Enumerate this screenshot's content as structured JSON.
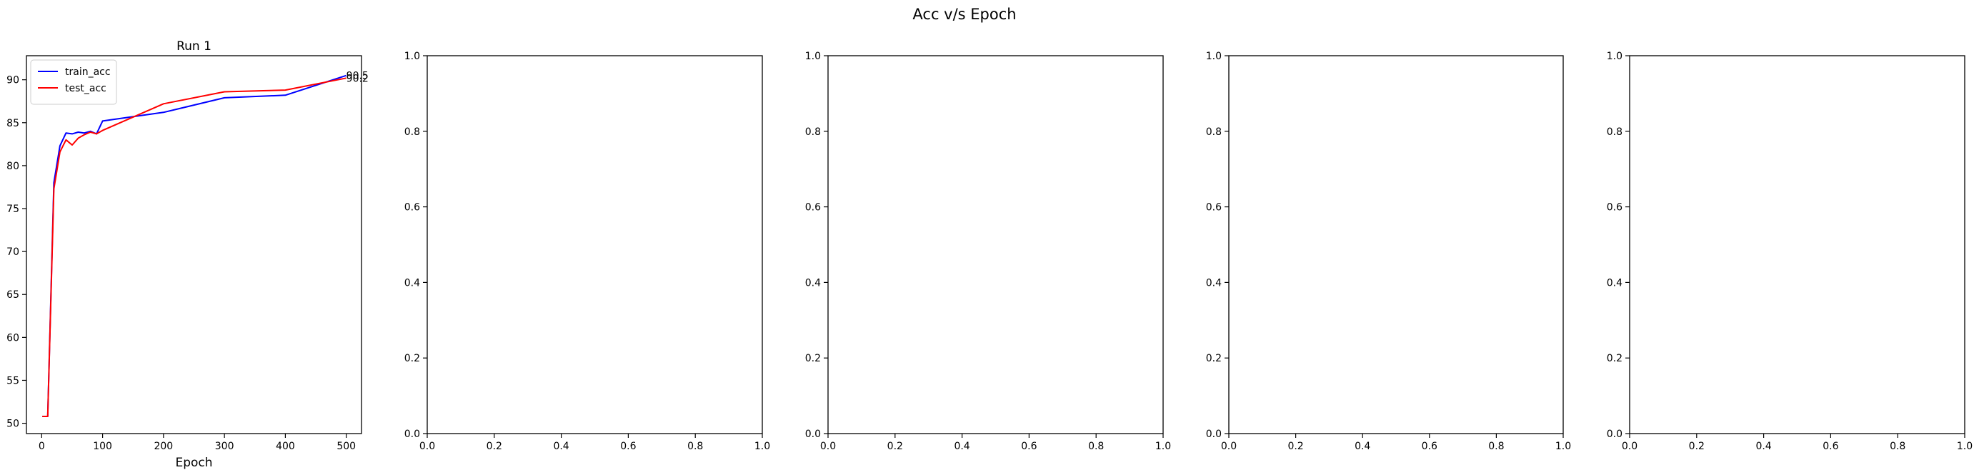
{
  "figure": {
    "suptitle": "Acc v/s Epoch"
  },
  "chart_data": [
    {
      "type": "line",
      "title": "Run 1",
      "xlabel": "Epoch",
      "ylabel": "",
      "xlim": [
        -25,
        525
      ],
      "ylim": [
        48.8,
        92.8
      ],
      "xticks": [
        0,
        100,
        200,
        300,
        400,
        500
      ],
      "yticks": [
        50,
        55,
        60,
        65,
        70,
        75,
        80,
        85,
        90
      ],
      "legend": "upper-left",
      "grid": false,
      "series": [
        {
          "name": "train_acc",
          "color": "#0000ff",
          "x": [
            1,
            10,
            20,
            30,
            40,
            50,
            60,
            70,
            80,
            90,
            100,
            200,
            300,
            400,
            500
          ],
          "y": [
            50.8,
            50.8,
            78.0,
            82.3,
            83.8,
            83.7,
            83.9,
            83.8,
            84.0,
            83.7,
            85.2,
            86.2,
            87.9,
            88.2,
            90.5
          ]
        },
        {
          "name": "test_acc",
          "color": "#ff0000",
          "x": [
            1,
            10,
            20,
            30,
            40,
            50,
            60,
            70,
            80,
            90,
            100,
            200,
            300,
            400,
            500
          ],
          "y": [
            50.8,
            50.8,
            77.3,
            81.6,
            83.0,
            82.4,
            83.2,
            83.6,
            83.9,
            83.7,
            84.1,
            87.2,
            88.6,
            88.8,
            90.2
          ]
        }
      ],
      "annotations": [
        {
          "x": 500,
          "y": 90.5,
          "text": "90.5"
        },
        {
          "x": 500,
          "y": 90.2,
          "text": "90.2"
        }
      ]
    },
    {
      "type": "line",
      "title": "",
      "xlim": [
        0,
        1
      ],
      "ylim": [
        0,
        1
      ],
      "xticks": [
        0.0,
        0.2,
        0.4,
        0.6,
        0.8,
        1.0
      ],
      "yticks": [
        0.0,
        0.2,
        0.4,
        0.6,
        0.8,
        1.0
      ],
      "series": []
    },
    {
      "type": "line",
      "title": "",
      "xlim": [
        0,
        1
      ],
      "ylim": [
        0,
        1
      ],
      "xticks": [
        0.0,
        0.2,
        0.4,
        0.6,
        0.8,
        1.0
      ],
      "yticks": [
        0.0,
        0.2,
        0.4,
        0.6,
        0.8,
        1.0
      ],
      "series": []
    },
    {
      "type": "line",
      "title": "",
      "xlim": [
        0,
        1
      ],
      "ylim": [
        0,
        1
      ],
      "xticks": [
        0.0,
        0.2,
        0.4,
        0.6,
        0.8,
        1.0
      ],
      "yticks": [
        0.0,
        0.2,
        0.4,
        0.6,
        0.8,
        1.0
      ],
      "series": []
    },
    {
      "type": "line",
      "title": "",
      "xlim": [
        0,
        1
      ],
      "ylim": [
        0,
        1
      ],
      "xticks": [
        0.0,
        0.2,
        0.4,
        0.6,
        0.8,
        1.0
      ],
      "yticks": [
        0.0,
        0.2,
        0.4,
        0.6,
        0.8,
        1.0
      ],
      "series": []
    }
  ]
}
